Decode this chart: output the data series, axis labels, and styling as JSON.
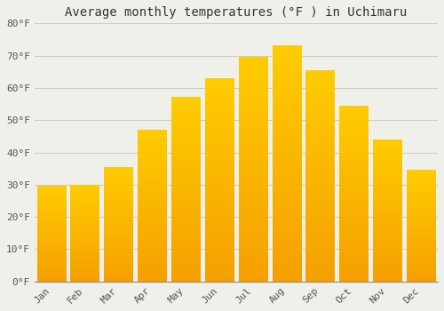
{
  "title": "Average monthly temperatures (°F ) in Uchimaru",
  "months": [
    "Jan",
    "Feb",
    "Mar",
    "Apr",
    "May",
    "Jun",
    "Jul",
    "Aug",
    "Sep",
    "Oct",
    "Nov",
    "Dec"
  ],
  "values": [
    29.5,
    30.0,
    35.5,
    47.0,
    57.0,
    63.0,
    69.5,
    73.0,
    65.5,
    54.5,
    44.0,
    34.5
  ],
  "bar_color_top": "#FFCC00",
  "bar_color_bottom": "#F5A000",
  "background_color": "#F0F0EB",
  "grid_color": "#CCCCCC",
  "ylim": [
    0,
    80
  ],
  "yticks": [
    0,
    10,
    20,
    30,
    40,
    50,
    60,
    70,
    80
  ],
  "title_fontsize": 10,
  "tick_fontsize": 8,
  "bar_width": 0.85
}
